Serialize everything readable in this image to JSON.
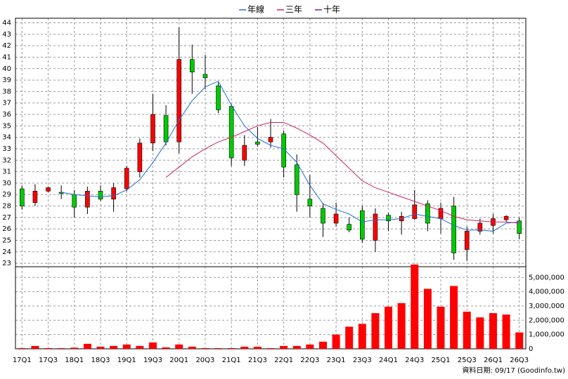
{
  "chart_data": {
    "type": "candlestick",
    "source": "資料日期: 09/17  (Goodinfo.tw)",
    "categories": [
      "17Q1",
      null,
      "17Q3",
      null,
      "18Q1",
      null,
      "18Q3",
      null,
      "19Q1",
      null,
      "19Q3",
      null,
      "20Q1",
      null,
      "20Q3",
      null,
      "21Q1",
      null,
      "21Q3",
      null,
      "22Q1",
      null,
      "22Q3",
      null,
      "23Q1",
      null,
      "23Q3",
      null,
      "24Q1",
      null,
      "24Q3",
      null,
      "25Q1",
      null,
      "25Q3",
      null,
      "26Q1",
      null,
      "26Q3"
    ],
    "open": [
      29.5,
      28.3,
      29.3,
      29.2,
      29.0,
      27.9,
      29.3,
      28.6,
      29.5,
      31.0,
      33.5,
      35.9,
      33.6,
      40.8,
      39.5,
      38.5,
      36.7,
      32.0,
      33.6,
      33.6,
      34.3,
      31.6,
      28.6,
      27.8,
      26.5,
      26.4,
      27.6,
      25.0,
      27.2,
      26.7,
      26.9,
      28.2,
      26.9,
      28.0,
      24.2,
      25.8,
      26.3,
      26.8,
      26.7
    ],
    "high": [
      29.8,
      29.9,
      29.7,
      29.8,
      29.4,
      29.7,
      29.8,
      30.0,
      31.5,
      33.9,
      37.8,
      36.8,
      43.6,
      42.1,
      41.2,
      38.8,
      36.9,
      34.2,
      34.9,
      35.6,
      34.6,
      32.5,
      30.7,
      28.2,
      28.3,
      27.0,
      28.0,
      27.8,
      27.4,
      27.5,
      29.4,
      28.5,
      28.3,
      28.8,
      26.2,
      26.9,
      27.3,
      27.2,
      27.0
    ],
    "low": [
      27.7,
      28.0,
      29.2,
      28.6,
      27.0,
      27.3,
      28.4,
      27.5,
      29.3,
      30.5,
      32.8,
      33.3,
      32.6,
      37.8,
      38.2,
      36.1,
      31.5,
      31.5,
      33.2,
      33.1,
      30.5,
      27.5,
      27.0,
      25.3,
      26.2,
      25.7,
      24.8,
      24.0,
      25.8,
      25.5,
      26.8,
      25.8,
      25.6,
      23.3,
      23.2,
      25.5,
      25.6,
      26.6,
      25.1
    ],
    "close": [
      28.0,
      29.3,
      29.6,
      29.1,
      27.9,
      29.3,
      28.6,
      29.6,
      31.3,
      33.5,
      36.0,
      33.6,
      40.8,
      39.7,
      39.2,
      36.4,
      32.2,
      33.3,
      33.4,
      34.0,
      31.4,
      29.0,
      28.0,
      26.5,
      27.3,
      25.9,
      25.1,
      27.3,
      26.7,
      27.1,
      28.1,
      26.5,
      27.8,
      23.9,
      25.8,
      26.5,
      26.9,
      27.1,
      25.6
    ],
    "up_color": "#ff0000",
    "down_color": "#00cc00",
    "series": [
      {
        "name": "年線",
        "color": "#1e6fd9",
        "values": [
          null,
          null,
          null,
          29.2,
          29.0,
          28.9,
          28.8,
          28.9,
          29.4,
          30.3,
          31.8,
          33.5,
          35.5,
          37.2,
          38.4,
          38.9,
          36.8,
          35.0,
          33.9,
          33.3,
          33.0,
          31.8,
          29.8,
          28.2,
          27.7,
          27.3,
          26.6,
          26.8,
          26.8,
          26.9,
          27.3,
          27.1,
          26.9,
          26.3,
          25.9,
          25.9,
          25.8,
          26.5,
          26.6
        ]
      },
      {
        "name": "三年",
        "color": "#d0206a",
        "values": [
          null,
          null,
          null,
          null,
          null,
          null,
          null,
          null,
          null,
          null,
          null,
          30.5,
          31.4,
          32.3,
          33.0,
          33.6,
          34.0,
          34.5,
          35.0,
          35.3,
          35.3,
          34.8,
          34.2,
          33.5,
          32.4,
          31.3,
          30.2,
          29.6,
          29.2,
          28.8,
          28.4,
          28.0,
          27.6,
          27.1,
          26.8,
          26.7,
          26.6,
          26.6,
          26.5
        ]
      },
      {
        "name": "十年",
        "color": "#8b1a8b",
        "values": [
          null,
          null,
          null,
          null,
          null,
          null,
          null,
          null,
          null,
          null,
          null,
          null,
          null,
          null,
          null,
          null,
          null,
          null,
          null,
          null,
          null,
          null,
          null,
          null,
          null,
          null,
          null,
          null,
          null,
          null,
          null,
          null,
          null,
          null,
          null,
          null,
          null,
          null,
          null
        ]
      }
    ],
    "ylim": [
      22.7,
      44.4
    ],
    "yticks": [
      23,
      24,
      25,
      26,
      27,
      28,
      29,
      30,
      31,
      32,
      33,
      34,
      35,
      36,
      37,
      38,
      39,
      40,
      41,
      42,
      43,
      44
    ],
    "grid": true,
    "volume": {
      "color": "#ff0000",
      "values": [
        50000,
        200000,
        50000,
        50000,
        80000,
        350000,
        150000,
        200000,
        300000,
        200000,
        450000,
        100000,
        300000,
        150000,
        50000,
        50000,
        50000,
        150000,
        150000,
        50000,
        200000,
        200000,
        300000,
        500000,
        1000000,
        1550000,
        1750000,
        2500000,
        2950000,
        3200000,
        5900000,
        4200000,
        2950000,
        4400000,
        2600000,
        2200000,
        2500000,
        2400000,
        1150000
      ],
      "ylim": [
        0,
        5750000
      ],
      "yticks": [
        {
          "value": 0,
          "label": "0"
        },
        {
          "value": 1000000,
          "label": "1,000,000"
        },
        {
          "value": 2000000,
          "label": "2,000,000"
        },
        {
          "value": 3000000,
          "label": "3,000,000"
        },
        {
          "value": 4000000,
          "label": "4,000,000"
        },
        {
          "value": 5000000,
          "label": "5,000,000"
        }
      ]
    }
  }
}
